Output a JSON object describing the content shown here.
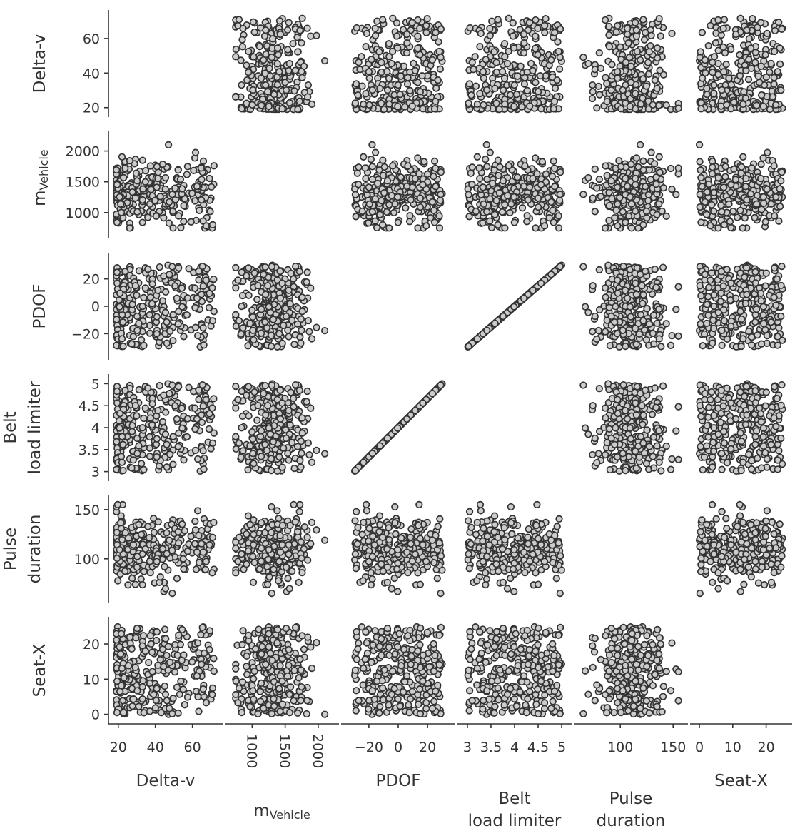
{
  "chart_data": {
    "type": "scatter",
    "kind": "scatter-matrix",
    "diagonal_visible": false,
    "marker": {
      "fill": "#cccccc",
      "stroke": "#333333",
      "shape": "open-circle"
    },
    "axis_color": "#333333",
    "grid": false,
    "sample_count": 300,
    "dimensions": [
      {
        "key": "dv",
        "label_lines": [
          "Delta-v"
        ],
        "row_label_lines": [
          "Delta-v"
        ],
        "range": [
          17,
          74
        ],
        "ticks": [
          {
            "v": 20,
            "label": "20"
          },
          {
            "v": 40,
            "label": "40"
          },
          {
            "v": 60,
            "label": "60"
          }
        ]
      },
      {
        "key": "mv",
        "label_lines": [
          "m"
        ],
        "label_sub": "Vehicle",
        "row_label_lines": [
          "m"
        ],
        "range": [
          650,
          2250
        ],
        "x_tick_rotation": 90,
        "ticks": [
          {
            "v": 1000,
            "label": "1000"
          },
          {
            "v": 1500,
            "label": "1500"
          },
          {
            "v": 2000,
            "label": "2000"
          }
        ]
      },
      {
        "key": "pdof",
        "label_lines": [
          "PDOF"
        ],
        "row_label_lines": [
          "PDOF"
        ],
        "range": [
          -36,
          36
        ],
        "ticks": [
          {
            "v": -20,
            "label": "−20"
          },
          {
            "v": 0,
            "label": "0"
          },
          {
            "v": 20,
            "label": "20"
          }
        ]
      },
      {
        "key": "belt",
        "label_lines": [
          "Belt",
          "load limiter"
        ],
        "row_label_lines": [
          "Belt",
          "load limiter"
        ],
        "range": [
          2.88,
          5.12
        ],
        "ticks": [
          {
            "v": 3,
            "label": "3"
          },
          {
            "v": 3.5,
            "label": "3.5"
          },
          {
            "v": 4,
            "label": "4"
          },
          {
            "v": 4.5,
            "label": "4.5"
          },
          {
            "v": 5,
            "label": "5"
          }
        ]
      },
      {
        "key": "pulse",
        "label_lines": [
          "Pulse",
          "duration"
        ],
        "row_label_lines": [
          "Pulse",
          "duration"
        ],
        "range": [
          60,
          160
        ],
        "ticks": [
          {
            "v": 100,
            "label": "100"
          },
          {
            "v": 150,
            "label": "150"
          }
        ]
      },
      {
        "key": "seat",
        "label_lines": [
          "Seat-X"
        ],
        "row_label_lines": [
          "Seat-X"
        ],
        "range": [
          -1.5,
          26.5
        ],
        "ticks": [
          {
            "v": 0,
            "label": "0"
          },
          {
            "v": 10,
            "label": "10"
          },
          {
            "v": 20,
            "label": "20"
          }
        ]
      }
    ],
    "linked_dimensions": {
      "belt": {
        "from": "pdof",
        "domain": [
          -30,
          30
        ],
        "range": [
          3,
          5
        ]
      }
    },
    "distributions": {
      "dv": {
        "family": "skewed",
        "min": 19,
        "max": 72
      },
      "mv": {
        "family": "normal",
        "mean": 1350,
        "sd": 260,
        "min": 750,
        "max": 2100
      },
      "pdof": {
        "family": "uniform",
        "min": -30,
        "max": 30
      },
      "pulse": {
        "family": "normal",
        "mean": 110,
        "sd": 16,
        "min": 65,
        "max": 155
      },
      "seat": {
        "family": "uniform",
        "min": 0,
        "max": 25
      }
    }
  }
}
